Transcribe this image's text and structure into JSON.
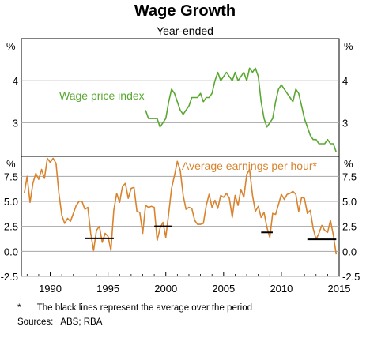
{
  "chart_data": {
    "type": "line",
    "title": "Wage Growth",
    "subtitle": "Year-ended",
    "x_ticks": [
      1990,
      1995,
      2000,
      2005,
      2010,
      2015
    ],
    "xlim": [
      1987.5,
      2015
    ],
    "panels": [
      {
        "unit": "%",
        "ylim": [
          2.2,
          5.0
        ],
        "yticks": [
          3,
          4
        ],
        "series": [
          {
            "name": "Wage price index",
            "color": "#5aa832",
            "x": [
              1998.25,
              1998.5,
              1998.75,
              1999.0,
              1999.25,
              1999.5,
              1999.75,
              2000.0,
              2000.25,
              2000.5,
              2000.75,
              2001.0,
              2001.25,
              2001.5,
              2001.75,
              2002.0,
              2002.25,
              2002.5,
              2002.75,
              2003.0,
              2003.25,
              2003.5,
              2003.75,
              2004.0,
              2004.25,
              2004.5,
              2004.75,
              2005.0,
              2005.25,
              2005.5,
              2005.75,
              2006.0,
              2006.25,
              2006.5,
              2006.75,
              2007.0,
              2007.25,
              2007.5,
              2007.75,
              2008.0,
              2008.25,
              2008.5,
              2008.75,
              2009.0,
              2009.25,
              2009.5,
              2009.75,
              2010.0,
              2010.25,
              2010.5,
              2010.75,
              2011.0,
              2011.25,
              2011.5,
              2011.75,
              2012.0,
              2012.25,
              2012.5,
              2012.75,
              2013.0,
              2013.25,
              2013.5,
              2013.75,
              2014.0,
              2014.25,
              2014.5,
              2014.75
            ],
            "values": [
              3.3,
              3.1,
              3.1,
              3.1,
              3.1,
              2.9,
              3.0,
              3.1,
              3.5,
              3.8,
              3.7,
              3.5,
              3.3,
              3.2,
              3.3,
              3.4,
              3.6,
              3.6,
              3.6,
              3.7,
              3.5,
              3.6,
              3.6,
              3.7,
              4.0,
              4.2,
              4.0,
              4.1,
              4.2,
              4.1,
              4.0,
              4.2,
              4.0,
              4.1,
              4.2,
              4.0,
              4.3,
              4.2,
              4.3,
              4.1,
              3.5,
              3.1,
              2.9,
              3.0,
              3.1,
              3.5,
              3.8,
              3.9,
              3.8,
              3.7,
              3.6,
              3.5,
              3.8,
              3.7,
              3.4,
              3.1,
              2.9,
              2.7,
              2.6,
              2.6,
              2.5,
              2.5,
              2.5,
              2.6,
              2.5,
              2.5,
              2.3
            ]
          }
        ]
      },
      {
        "unit": "%",
        "ylim": [
          -2.5,
          9.5
        ],
        "yticks": [
          -2.5,
          0.0,
          2.5,
          5.0,
          7.5
        ],
        "ytick_labels": [
          "-2.5",
          "0.0",
          "2.5",
          "5.0",
          "7.5"
        ],
        "series": [
          {
            "name": "Average earnings per hour*",
            "color": "#d9832e",
            "x": [
              1987.75,
              1988.0,
              1988.25,
              1988.5,
              1988.75,
              1989.0,
              1989.25,
              1989.5,
              1989.75,
              1990.0,
              1990.25,
              1990.5,
              1990.75,
              1991.0,
              1991.25,
              1991.5,
              1991.75,
              1992.0,
              1992.25,
              1992.5,
              1992.75,
              1993.0,
              1993.25,
              1993.5,
              1993.75,
              1994.0,
              1994.25,
              1994.5,
              1994.75,
              1995.0,
              1995.25,
              1995.5,
              1995.75,
              1996.0,
              1996.25,
              1996.5,
              1996.75,
              1997.0,
              1997.25,
              1997.5,
              1997.75,
              1998.0,
              1998.25,
              1998.5,
              1998.75,
              1999.0,
              1999.25,
              1999.5,
              1999.75,
              2000.0,
              2000.25,
              2000.5,
              2000.75,
              2001.0,
              2001.25,
              2001.5,
              2001.75,
              2002.0,
              2002.25,
              2002.5,
              2002.75,
              2003.0,
              2003.25,
              2003.5,
              2003.75,
              2004.0,
              2004.25,
              2004.5,
              2004.75,
              2005.0,
              2005.25,
              2005.5,
              2005.75,
              2006.0,
              2006.25,
              2006.5,
              2006.75,
              2007.0,
              2007.25,
              2007.5,
              2007.75,
              2008.0,
              2008.25,
              2008.5,
              2008.75,
              2009.0,
              2009.25,
              2009.5,
              2009.75,
              2010.0,
              2010.25,
              2010.5,
              2010.75,
              2011.0,
              2011.25,
              2011.5,
              2011.75,
              2012.0,
              2012.25,
              2012.5,
              2012.75,
              2013.0,
              2013.25,
              2013.5,
              2013.75,
              2014.0,
              2014.25,
              2014.5,
              2014.75
            ],
            "values": [
              5.8,
              7.5,
              4.9,
              6.8,
              7.8,
              7.2,
              8.2,
              7.3,
              9.3,
              8.9,
              9.3,
              8.8,
              5.8,
              3.6,
              2.8,
              3.3,
              3.0,
              3.8,
              4.6,
              5.0,
              5.0,
              4.2,
              4.4,
              1.8,
              0.1,
              2.1,
              2.5,
              0.9,
              1.8,
              1.5,
              0.1,
              4.1,
              5.8,
              4.9,
              6.5,
              6.8,
              5.3,
              6.3,
              6.4,
              4.0,
              3.9,
              1.8,
              4.6,
              4.4,
              4.5,
              4.4,
              1.1,
              2.3,
              2.9,
              1.4,
              3.8,
              6.3,
              7.6,
              9.0,
              8.1,
              5.6,
              4.2,
              4.4,
              4.3,
              3.1,
              2.7,
              2.7,
              2.8,
              4.6,
              5.7,
              4.4,
              5.1,
              4.3,
              5.6,
              5.4,
              5.8,
              5.3,
              3.4,
              5.6,
              4.6,
              6.2,
              5.4,
              7.7,
              8.2,
              5.6,
              4.0,
              4.5,
              3.4,
              3.9,
              2.4,
              1.4,
              3.8,
              3.7,
              4.7,
              5.7,
              5.2,
              5.7,
              5.8,
              6.0,
              5.7,
              4.0,
              5.4,
              5.3,
              3.8,
              4.1,
              2.3,
              1.2,
              1.8,
              2.6,
              2.1,
              1.9,
              3.1,
              1.6,
              -0.3
            ]
          }
        ],
        "average_lines": [
          {
            "x": [
              1993.0,
              1995.5
            ],
            "value": 1.3
          },
          {
            "x": [
              1999.0,
              2000.5
            ],
            "value": 2.5
          },
          {
            "x": [
              2008.25,
              2009.25
            ],
            "value": 1.9
          },
          {
            "x": [
              2012.25,
              2014.75
            ],
            "value": 1.2
          }
        ]
      }
    ],
    "footnote_mark": "*",
    "footnote_text": "The black lines represent the average over the period",
    "sources": "Sources:   ABS; RBA"
  }
}
